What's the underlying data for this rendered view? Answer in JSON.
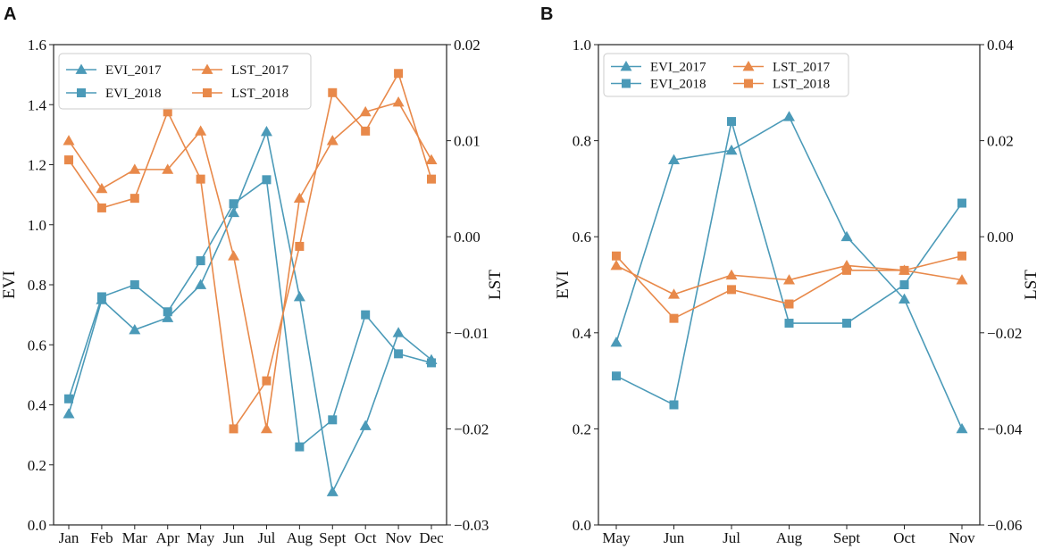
{
  "colors": {
    "evi": "#4b9ab8",
    "lst": "#e8894a",
    "axis": "#222222",
    "legend_border": "#cccccc"
  },
  "chart_data": [
    {
      "type": "line",
      "panel_label": "A",
      "categories": [
        "Jan",
        "Feb",
        "Mar",
        "Apr",
        "May",
        "Jun",
        "Jul",
        "Aug",
        "Sept",
        "Oct",
        "Nov",
        "Dec"
      ],
      "ylabel": "EVI",
      "y2label": "LST",
      "ylim": [
        0.0,
        1.6
      ],
      "y2lim": [
        -0.03,
        0.02
      ],
      "yticks": [
        "0.0",
        "0.2",
        "0.4",
        "0.6",
        "0.8",
        "1.0",
        "1.2",
        "1.4",
        "1.6"
      ],
      "y2ticks": [
        "−0.03",
        "−0.02",
        "−0.01",
        "0.00",
        "0.01",
        "0.02"
      ],
      "legend": [
        "EVI_2017",
        "EVI_2018",
        "LST_2017",
        "LST_2018"
      ],
      "series": [
        {
          "name": "EVI_2017",
          "axis": "left",
          "marker": "triangle",
          "color_key": "evi",
          "values": [
            0.37,
            0.75,
            0.65,
            0.69,
            0.8,
            1.04,
            1.31,
            0.76,
            0.11,
            0.33,
            0.64,
            0.55
          ]
        },
        {
          "name": "EVI_2018",
          "axis": "left",
          "marker": "square",
          "color_key": "evi",
          "values": [
            0.42,
            0.76,
            0.8,
            0.71,
            0.88,
            1.07,
            1.15,
            0.26,
            0.35,
            0.7,
            0.57,
            0.54
          ]
        },
        {
          "name": "LST_2017",
          "axis": "right",
          "marker": "triangle",
          "color_key": "lst",
          "values": [
            0.01,
            0.005,
            0.007,
            0.007,
            0.011,
            -0.002,
            -0.02,
            0.004,
            0.01,
            0.013,
            0.014,
            0.008
          ]
        },
        {
          "name": "LST_2018",
          "axis": "right",
          "marker": "square",
          "color_key": "lst",
          "values": [
            0.008,
            0.003,
            0.004,
            0.013,
            0.006,
            -0.02,
            -0.015,
            -0.001,
            0.015,
            0.011,
            0.017,
            0.006
          ]
        }
      ]
    },
    {
      "type": "line",
      "panel_label": "B",
      "categories": [
        "May",
        "Jun",
        "Jul",
        "Aug",
        "Sept",
        "Oct",
        "Nov"
      ],
      "ylabel": "EVI",
      "y2label": "LST",
      "ylim": [
        0.0,
        1.0
      ],
      "y2lim": [
        -0.06,
        0.04
      ],
      "yticks": [
        "0.0",
        "0.2",
        "0.4",
        "0.6",
        "0.8",
        "1.0"
      ],
      "y2ticks": [
        "−0.06",
        "−0.04",
        "−0.02",
        "0.00",
        "0.02",
        "0.04"
      ],
      "legend": [
        "EVI_2017",
        "EVI_2018",
        "LST_2017",
        "LST_2018"
      ],
      "series": [
        {
          "name": "EVI_2017",
          "axis": "left",
          "marker": "triangle",
          "color_key": "evi",
          "values": [
            0.38,
            0.76,
            0.78,
            0.85,
            0.6,
            0.47,
            0.2
          ]
        },
        {
          "name": "EVI_2018",
          "axis": "left",
          "marker": "square",
          "color_key": "evi",
          "values": [
            0.31,
            0.25,
            0.84,
            0.42,
            0.42,
            0.5,
            0.67
          ]
        },
        {
          "name": "LST_2017",
          "axis": "right",
          "marker": "triangle",
          "color_key": "lst",
          "values": [
            -0.006,
            -0.012,
            -0.008,
            -0.009,
            -0.006,
            -0.007,
            -0.009
          ]
        },
        {
          "name": "LST_2018",
          "axis": "right",
          "marker": "square",
          "color_key": "lst",
          "values": [
            -0.004,
            -0.017,
            -0.011,
            -0.014,
            -0.007,
            -0.007,
            -0.004
          ]
        }
      ]
    }
  ]
}
